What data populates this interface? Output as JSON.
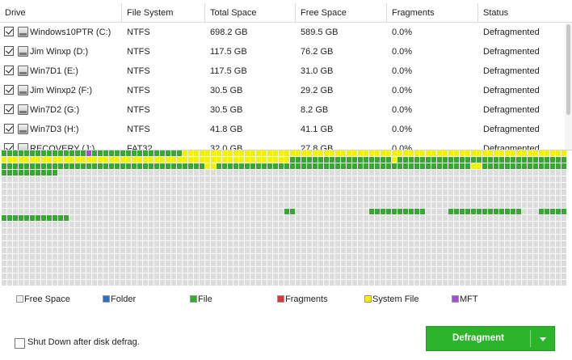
{
  "columns": [
    "Drive",
    "File System",
    "Total Space",
    "Free Space",
    "Fragments",
    "Status"
  ],
  "drives": [
    {
      "name": "Windows10PTR (C:)",
      "fs": "NTFS",
      "total": "698.2 GB",
      "free": "589.5 GB",
      "fragments": "0.0%",
      "status": "Defragmented",
      "checked": true
    },
    {
      "name": "Jim Winxp (D:)",
      "fs": "NTFS",
      "total": "117.5 GB",
      "free": "76.2 GB",
      "fragments": "0.0%",
      "status": "Defragmented",
      "checked": true
    },
    {
      "name": "Win7D1 (E:)",
      "fs": "NTFS",
      "total": "117.5 GB",
      "free": "31.0 GB",
      "fragments": "0.0%",
      "status": "Defragmented",
      "checked": true
    },
    {
      "name": "Jim Winxp2 (F:)",
      "fs": "NTFS",
      "total": "30.5 GB",
      "free": "29.2 GB",
      "fragments": "0.0%",
      "status": "Defragmented",
      "checked": true
    },
    {
      "name": "Win7D2 (G:)",
      "fs": "NTFS",
      "total": "30.5 GB",
      "free": "8.2 GB",
      "fragments": "0.0%",
      "status": "Defragmented",
      "checked": true
    },
    {
      "name": "Win7D3 (H:)",
      "fs": "NTFS",
      "total": "41.8 GB",
      "free": "41.1 GB",
      "fragments": "0.0%",
      "status": "Defragmented",
      "checked": true
    },
    {
      "name": "RECOVERY (J:)",
      "fs": "FAT32",
      "total": "32.0 GB",
      "free": "27.8 GB",
      "fragments": "0.0%",
      "status": "Defragmented",
      "checked": true
    }
  ],
  "legend": [
    {
      "label": "Free Space",
      "color": "#f0f0f0"
    },
    {
      "label": "Folder",
      "color": "#2e6fbf"
    },
    {
      "label": "File",
      "color": "#39a935"
    },
    {
      "label": "Fragments",
      "color": "#d23a3a"
    },
    {
      "label": "System File",
      "color": "#f2f200"
    },
    {
      "label": "MFT",
      "color": "#a24fd6"
    }
  ],
  "colors": {
    "free": "#dcdcdc",
    "file": "#3aa635",
    "system": "#f2f200",
    "mft": "#a24fd6",
    "button": "#2cb52a"
  },
  "footer": {
    "shutdown_label": "Shut Down after disk defrag.",
    "shutdown_checked": false
  },
  "button": {
    "label": "Defragment"
  }
}
